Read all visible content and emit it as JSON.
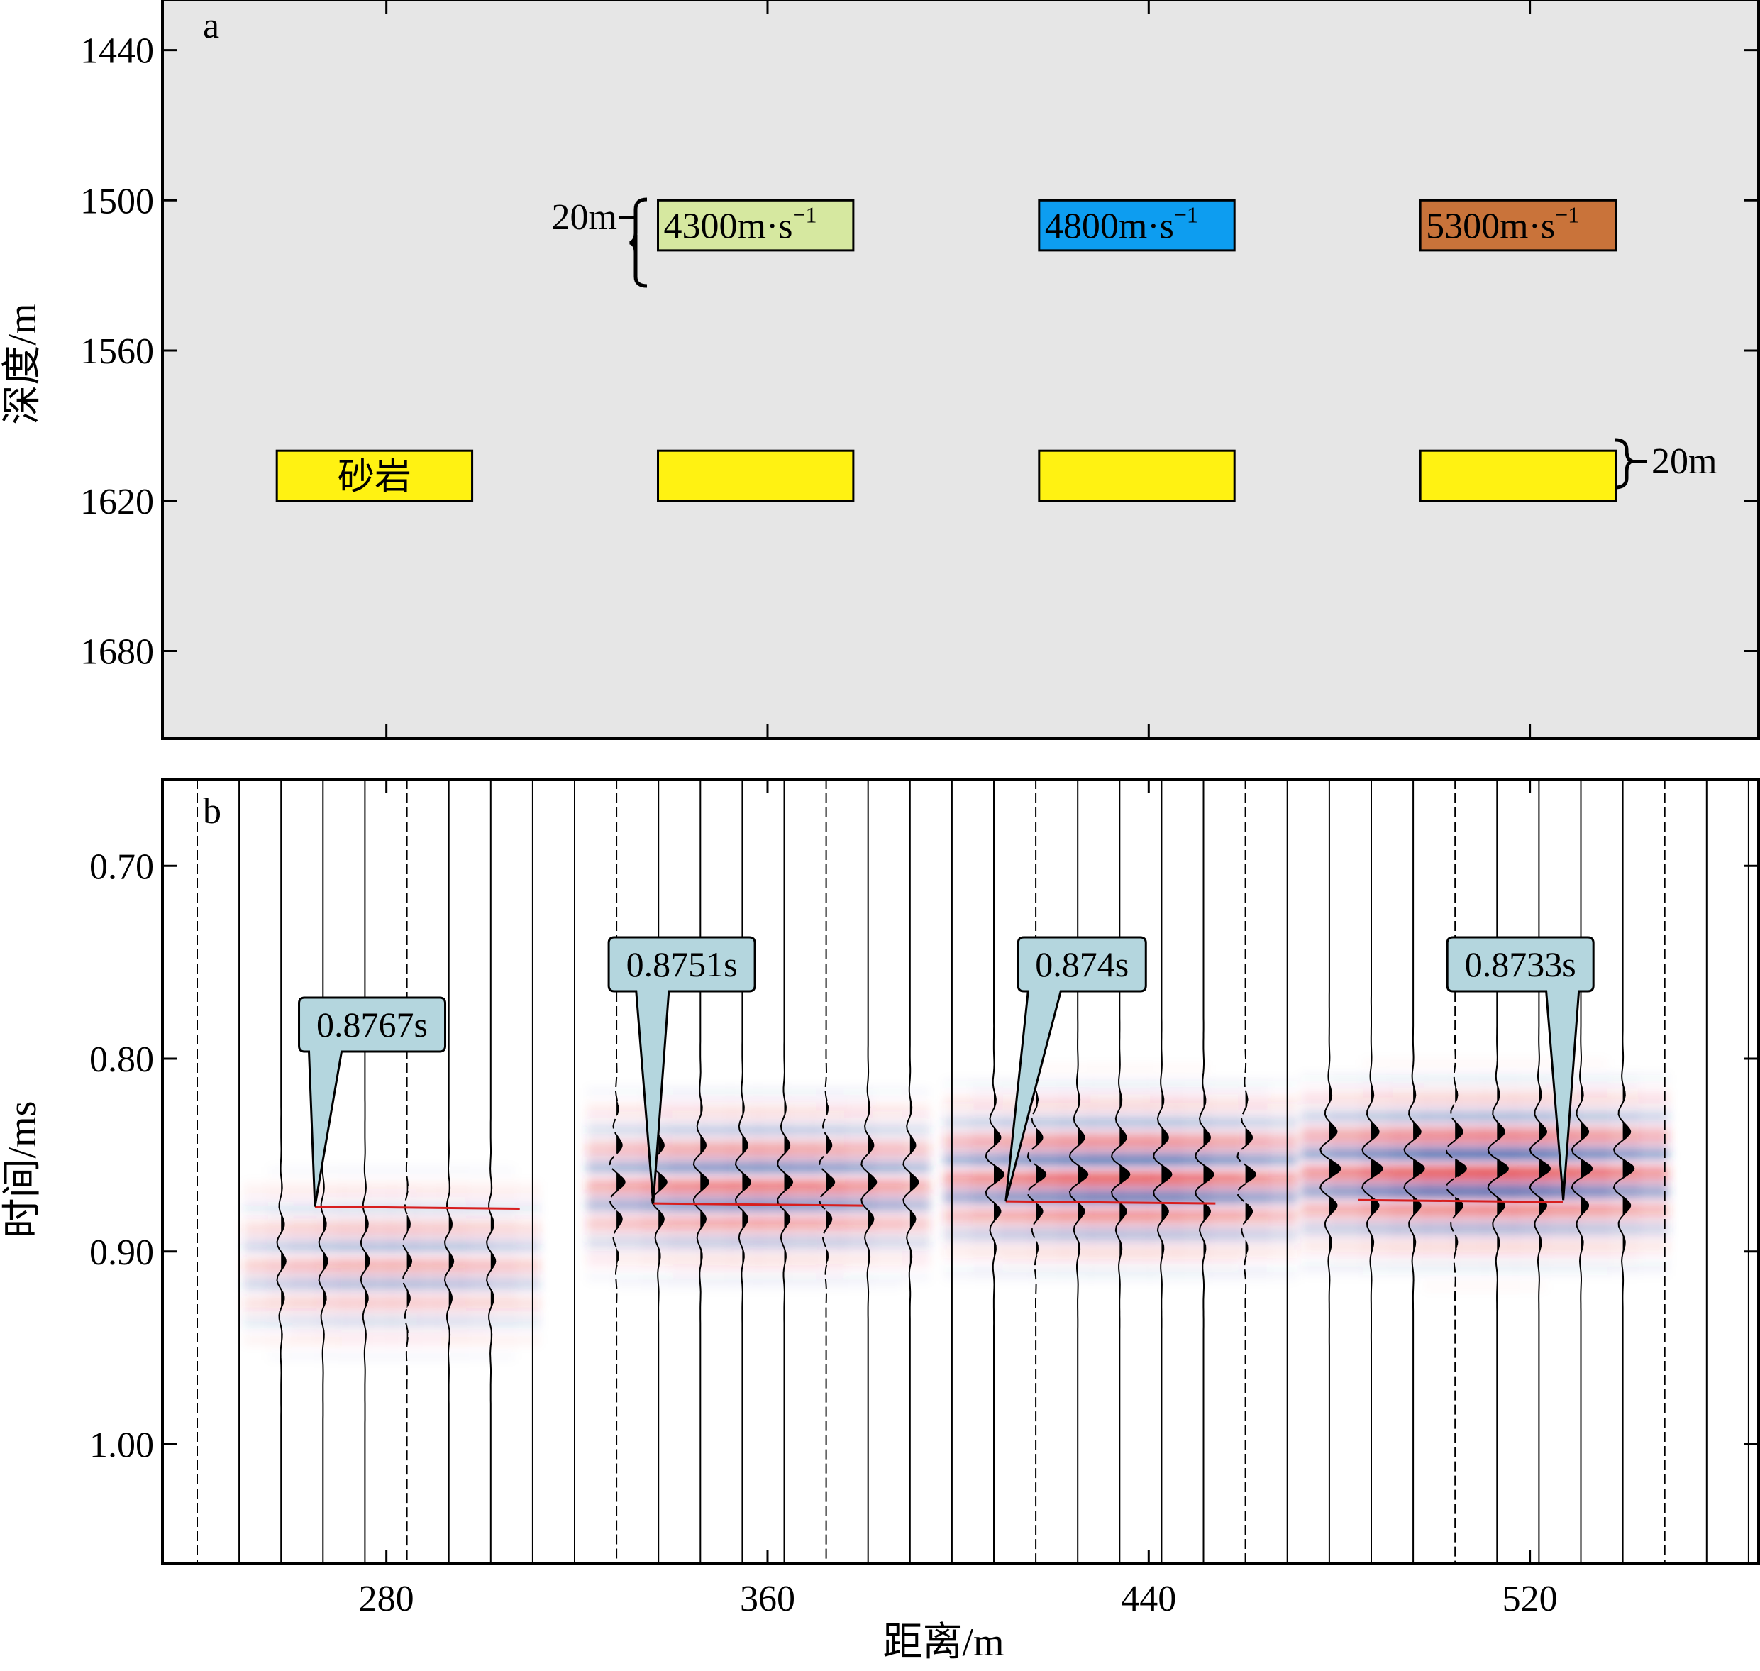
{
  "colors": {
    "panel_a_background": "#e6e6e6",
    "sandstone": "#fff212",
    "velocity_4300": "#d6e8a0",
    "velocity_4800": "#0d9df0",
    "velocity_5300": "#c9733a",
    "callout_fill": "#b4d6de",
    "pick_line": "#d81e1e",
    "positive_amplitude": "#e0242a",
    "negative_amplitude": "#1c3a95"
  },
  "panel_a": {
    "letter": "a",
    "annotations": {
      "thickness_top": "20m",
      "thickness_bottom": "20m",
      "sandstone_label": "砂岩"
    }
  },
  "panel_b": {
    "letter": "b",
    "callouts": [
      "0.8767s",
      "0.8751s",
      "0.874s",
      "0.8733s"
    ]
  },
  "chart_data": [
    {
      "type": "table",
      "panel": "a",
      "xlabel": "",
      "ylabel": "深度/m",
      "x_range": [
        233,
        568
      ],
      "y_range": [
        1420,
        1715
      ],
      "y_inverted": true,
      "y_ticks": [
        "1440",
        "1500",
        "1560",
        "1620",
        "1680"
      ],
      "y_tick_values": [
        1440,
        1500,
        1560,
        1620,
        1680
      ],
      "x_tick_values": [
        280,
        360,
        440,
        520
      ],
      "grid": false,
      "upper_boxes": [
        {
          "x0": 337,
          "x1": 378,
          "depth_top": 1500,
          "depth_bottom": 1520,
          "label": "4300m·s",
          "sup": "−1",
          "color_key": "velocity_4300"
        },
        {
          "x0": 417,
          "x1": 458,
          "depth_top": 1500,
          "depth_bottom": 1520,
          "label": "4800m·s",
          "sup": "−1",
          "color_key": "velocity_4800"
        },
        {
          "x0": 497,
          "x1": 538,
          "depth_top": 1500,
          "depth_bottom": 1520,
          "label": "5300m·s",
          "sup": "−1",
          "color_key": "velocity_5300"
        }
      ],
      "sand_bodies": [
        {
          "x0": 257,
          "x1": 298,
          "depth_top": 1600,
          "depth_bottom": 1620
        },
        {
          "x0": 337,
          "x1": 378,
          "depth_top": 1600,
          "depth_bottom": 1620
        },
        {
          "x0": 417,
          "x1": 458,
          "depth_top": 1600,
          "depth_bottom": 1620
        },
        {
          "x0": 497,
          "x1": 538,
          "depth_top": 1600,
          "depth_bottom": 1620
        }
      ]
    },
    {
      "type": "heatmap",
      "panel": "b",
      "xlabel": "距离/m",
      "ylabel": "时间/ms",
      "x_range": [
        233,
        568
      ],
      "y_range": [
        0.655,
        1.062
      ],
      "y_inverted": true,
      "x_ticks": [
        "280",
        "360",
        "440",
        "520"
      ],
      "x_tick_values": [
        280,
        360,
        440,
        520
      ],
      "y_ticks": [
        "0.70",
        "0.80",
        "0.90",
        "1.00"
      ],
      "y_tick_values": [
        0.7,
        0.8,
        0.9,
        1.0
      ],
      "trace_spacing_m": 8.8,
      "grid": false,
      "anomalies": [
        {
          "x0": 256,
          "x1": 306,
          "t_center": 0.905,
          "amplitude": 0.45,
          "pick_x0": 265,
          "pick_x1": 308,
          "pick_time": 0.8767,
          "callout": "0.8767s",
          "tip_x": 265,
          "box_x": 277
        },
        {
          "x0": 328,
          "x1": 388,
          "t_center": 0.864,
          "amplitude": 0.75,
          "pick_x0": 336,
          "pick_x1": 380,
          "pick_time": 0.8751,
          "callout": "0.8751s",
          "tip_x": 336,
          "box_x": 342
        },
        {
          "x0": 403,
          "x1": 465,
          "t_center": 0.86,
          "amplitude": 0.9,
          "pick_x0": 410,
          "pick_x1": 454,
          "pick_time": 0.874,
          "callout": "0.874s",
          "tip_x": 410,
          "box_x": 426
        },
        {
          "x0": 478,
          "x1": 543,
          "t_center": 0.857,
          "amplitude": 1.0,
          "pick_x0": 484,
          "pick_x1": 527,
          "pick_time": 0.8733,
          "callout": "0.8733s",
          "tip_x": 527,
          "box_x": 518
        }
      ]
    }
  ]
}
